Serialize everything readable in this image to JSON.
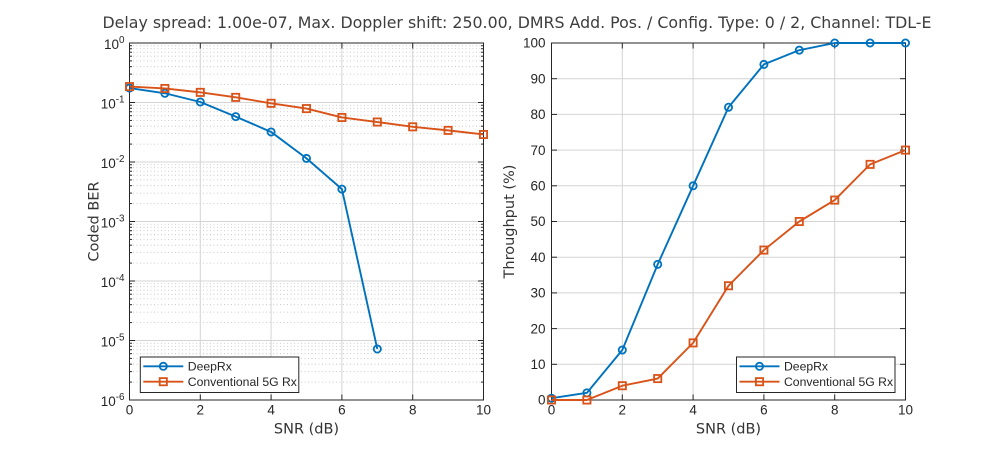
{
  "title": "Delay spread: 1.00e-07, Max. Doppler shift: 250.00, DMRS Add. Pos. / Config. Type: 0 / 2, Channel: TDL-E",
  "colors": {
    "deeprx": "#0072BD",
    "conventional_5g_rx": "#D95319",
    "grid_major": "#d4d4d4",
    "grid_minor": "#bfbfbf",
    "axis": "#262626",
    "text": "#333333"
  },
  "chart_data": [
    {
      "type": "line",
      "xlabel": "SNR (dB)",
      "ylabel": "Coded BER",
      "xlim": [
        0,
        10
      ],
      "xticks": [
        0,
        2,
        4,
        6,
        8,
        10
      ],
      "yscale": "log",
      "ylim": [
        1e-06,
        1
      ],
      "ytick_exponents": [
        0,
        -1,
        -2,
        -3,
        -4,
        -5,
        -6
      ],
      "grid": true,
      "minor_grid": true,
      "legend_position": "southwest",
      "series": [
        {
          "name": "DeepRx",
          "marker": "circle",
          "color": "#0072BD",
          "x": [
            0,
            1,
            2,
            3,
            4,
            5,
            6,
            7
          ],
          "y": [
            0.175,
            0.143,
            0.102,
            0.058,
            0.032,
            0.0115,
            0.0035,
            7.2e-06
          ]
        },
        {
          "name": "Conventional 5G Rx",
          "marker": "square",
          "color": "#D95319",
          "x": [
            0,
            1,
            2,
            3,
            4,
            5,
            6,
            7,
            8,
            9,
            10
          ],
          "y": [
            0.185,
            0.172,
            0.148,
            0.122,
            0.097,
            0.079,
            0.056,
            0.047,
            0.039,
            0.034,
            0.029
          ]
        }
      ]
    },
    {
      "type": "line",
      "xlabel": "SNR (dB)",
      "ylabel": "Throughput (%)",
      "xlim": [
        0,
        10
      ],
      "xticks": [
        0,
        2,
        4,
        6,
        8,
        10
      ],
      "yscale": "linear",
      "ylim": [
        0,
        100
      ],
      "yticks": [
        0,
        10,
        20,
        30,
        40,
        50,
        60,
        70,
        80,
        90,
        100
      ],
      "grid": true,
      "minor_grid": false,
      "legend_position": "southeast",
      "series": [
        {
          "name": "DeepRx",
          "marker": "circle",
          "color": "#0072BD",
          "x": [
            0,
            1,
            2,
            3,
            4,
            5,
            6,
            7,
            8,
            9,
            10
          ],
          "y": [
            0.5,
            2,
            14,
            38,
            60,
            82,
            94,
            98,
            100,
            100,
            100
          ]
        },
        {
          "name": "Conventional 5G Rx",
          "marker": "square",
          "color": "#D95319",
          "x": [
            0,
            1,
            2,
            3,
            4,
            5,
            6,
            7,
            8,
            9,
            10
          ],
          "y": [
            0,
            0,
            4,
            6,
            16,
            32,
            42,
            50,
            56,
            66,
            70
          ]
        }
      ]
    }
  ]
}
